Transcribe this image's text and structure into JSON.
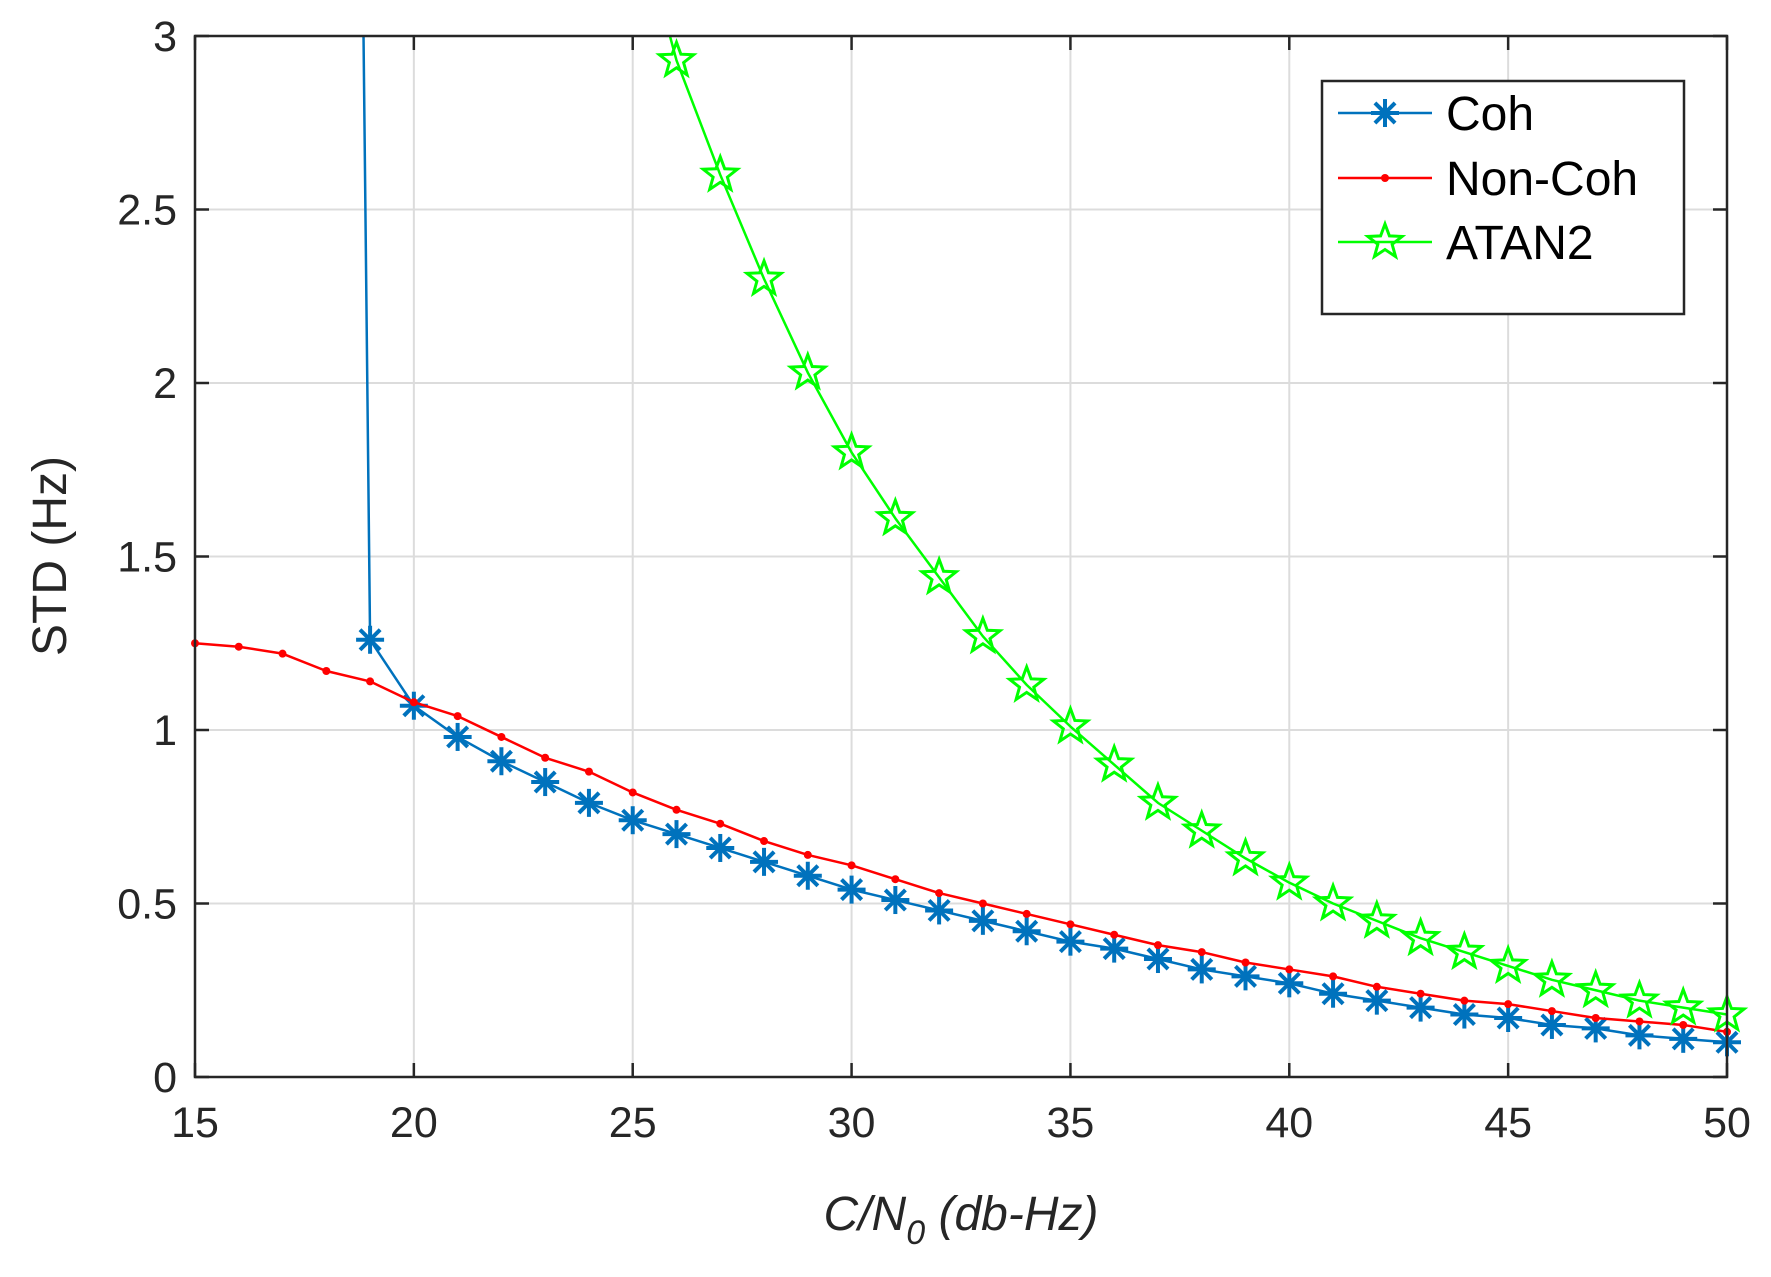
{
  "chart_data": {
    "type": "line",
    "title": "",
    "xlabel": "C/N",
    "xlabel_subscript": "0",
    "xlabel_suffix": " (db-Hz)",
    "ylabel": "STD (Hz)",
    "xlim": [
      15,
      50
    ],
    "ylim": [
      0,
      3
    ],
    "xticks": [
      15,
      20,
      25,
      30,
      35,
      40,
      45,
      50
    ],
    "xtick_labels": [
      "15",
      "20",
      "25",
      "30",
      "35",
      "40",
      "45",
      "50"
    ],
    "yticks": [
      0,
      0.5,
      1,
      1.5,
      2,
      2.5,
      3
    ],
    "ytick_labels": [
      "0",
      "0.5",
      "1",
      "1.5",
      "2",
      "2.5",
      "3"
    ],
    "grid": true,
    "legend_position": "top-right",
    "series": [
      {
        "name": "Coh",
        "color": "#0072BD",
        "marker": "asterisk",
        "x": [
          18.85,
          19,
          20,
          21,
          22,
          23,
          24,
          25,
          26,
          27,
          28,
          29,
          30,
          31,
          32,
          33,
          34,
          35,
          36,
          37,
          38,
          39,
          40,
          41,
          42,
          43,
          44,
          45,
          46,
          47,
          48,
          49,
          50
        ],
        "y": [
          3.0,
          1.26,
          1.07,
          0.98,
          0.91,
          0.85,
          0.79,
          0.74,
          0.7,
          0.66,
          0.62,
          0.58,
          0.54,
          0.51,
          0.48,
          0.45,
          0.42,
          0.39,
          0.37,
          0.34,
          0.31,
          0.29,
          0.27,
          0.24,
          0.22,
          0.2,
          0.18,
          0.17,
          0.15,
          0.14,
          0.12,
          0.11,
          0.1
        ],
        "marker_mask": [
          false,
          true,
          true,
          true,
          true,
          true,
          true,
          true,
          true,
          true,
          true,
          true,
          true,
          true,
          true,
          true,
          true,
          true,
          true,
          true,
          true,
          true,
          true,
          true,
          true,
          true,
          true,
          true,
          true,
          true,
          true,
          true,
          true
        ]
      },
      {
        "name": "Non-Coh",
        "color": "#FF0000",
        "marker": "dot",
        "x": [
          15,
          16,
          17,
          18,
          19,
          20,
          21,
          22,
          23,
          24,
          25,
          26,
          27,
          28,
          29,
          30,
          31,
          32,
          33,
          34,
          35,
          36,
          37,
          38,
          39,
          40,
          41,
          42,
          43,
          44,
          45,
          46,
          47,
          48,
          49,
          50
        ],
        "y": [
          1.25,
          1.24,
          1.22,
          1.17,
          1.14,
          1.08,
          1.04,
          0.98,
          0.92,
          0.88,
          0.82,
          0.77,
          0.73,
          0.68,
          0.64,
          0.61,
          0.57,
          0.53,
          0.5,
          0.47,
          0.44,
          0.41,
          0.38,
          0.36,
          0.33,
          0.31,
          0.29,
          0.26,
          0.24,
          0.22,
          0.21,
          0.19,
          0.17,
          0.16,
          0.15,
          0.13
        ]
      },
      {
        "name": "ATAN2",
        "color": "#00FF00",
        "marker": "pentagram",
        "x": [
          25.85,
          26,
          27,
          28,
          29,
          30,
          31,
          32,
          33,
          34,
          35,
          36,
          37,
          38,
          39,
          40,
          41,
          42,
          43,
          44,
          45,
          46,
          47,
          48,
          49,
          50
        ],
        "y": [
          3.0,
          2.93,
          2.6,
          2.3,
          2.03,
          1.8,
          1.61,
          1.44,
          1.27,
          1.13,
          1.01,
          0.9,
          0.79,
          0.71,
          0.63,
          0.56,
          0.5,
          0.45,
          0.4,
          0.36,
          0.32,
          0.28,
          0.25,
          0.22,
          0.2,
          0.18
        ],
        "marker_mask": [
          false,
          true,
          true,
          true,
          true,
          true,
          true,
          true,
          true,
          true,
          true,
          true,
          true,
          true,
          true,
          true,
          true,
          true,
          true,
          true,
          true,
          true,
          true,
          true,
          true,
          true
        ]
      }
    ]
  }
}
